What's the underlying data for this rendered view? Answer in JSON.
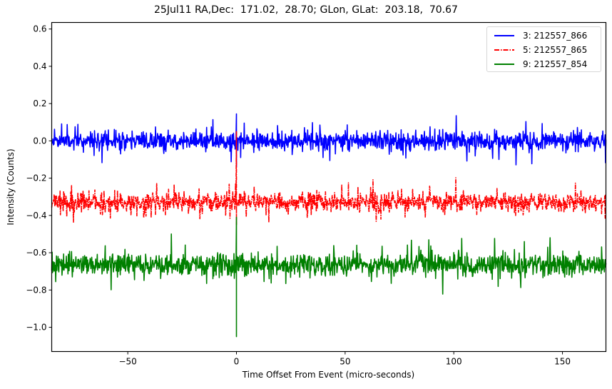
{
  "chart_data": {
    "type": "line",
    "title": "25Jul11 RA,Dec:  171.02,  28.70; GLon, GLat:  203.18,  70.67",
    "xlabel": "Time Offset From Event (micro-seconds)",
    "ylabel": "Intensity (Counts)",
    "xlim": [
      -85,
      170
    ],
    "ylim": [
      -1.13,
      0.635
    ],
    "xticks": [
      -50,
      0,
      50,
      100,
      150
    ],
    "xtick_labels": [
      "−50",
      "0",
      "50",
      "100",
      "150"
    ],
    "yticks": [
      0.6,
      0.4,
      0.2,
      0.0,
      -0.2,
      -0.4,
      -0.6,
      -0.8,
      -1.0
    ],
    "ytick_labels": [
      "0.6",
      "0.4",
      "0.2",
      "0.0",
      "−0.2",
      "−0.4",
      "−0.6",
      "−0.8",
      "−1.0"
    ],
    "grid": false,
    "legend_position": "upper right",
    "series": [
      {
        "name": "3: 212557_866",
        "color": "#0000ff",
        "linestyle": "solid",
        "baseline": 0.0,
        "noise_amplitude": 0.045,
        "spike": {
          "x": 0.0,
          "peak": 0.145,
          "trough": -0.14
        },
        "seed": 11
      },
      {
        "name": "5: 212557_865",
        "color": "#ff0000",
        "linestyle": "dashdot",
        "baseline": -0.33,
        "noise_amplitude": 0.045,
        "spike": {
          "x": 0.0,
          "peak": 0.05,
          "trough": -0.45
        },
        "seed": 23
      },
      {
        "name": "9: 212557_854",
        "color": "#008000",
        "linestyle": "solid",
        "baseline": -0.665,
        "noise_amplitude": 0.05,
        "spike": {
          "x": 0.0,
          "peak": -0.41,
          "trough": -1.05
        },
        "seed": 37
      }
    ]
  },
  "legend": {
    "entries": [
      {
        "label": "3: 212557_866",
        "color": "#0000ff",
        "dash": ""
      },
      {
        "label": "5: 212557_865",
        "color": "#ff0000",
        "dash": "7,2,1.5,2"
      },
      {
        "label": "9: 212557_854",
        "color": "#008000",
        "dash": ""
      }
    ]
  }
}
